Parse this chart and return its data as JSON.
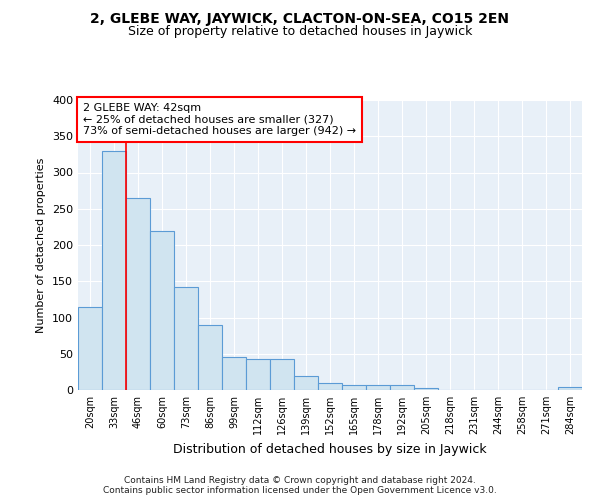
{
  "title1": "2, GLEBE WAY, JAYWICK, CLACTON-ON-SEA, CO15 2EN",
  "title2": "Size of property relative to detached houses in Jaywick",
  "xlabel": "Distribution of detached houses by size in Jaywick",
  "ylabel": "Number of detached properties",
  "bar_color": "#d0e4f0",
  "bar_edge_color": "#5b9bd5",
  "bin_labels": [
    "20sqm",
    "33sqm",
    "46sqm",
    "60sqm",
    "73sqm",
    "86sqm",
    "99sqm",
    "112sqm",
    "126sqm",
    "139sqm",
    "152sqm",
    "165sqm",
    "178sqm",
    "192sqm",
    "205sqm",
    "218sqm",
    "231sqm",
    "244sqm",
    "258sqm",
    "271sqm",
    "284sqm"
  ],
  "values": [
    115,
    330,
    265,
    220,
    142,
    90,
    45,
    43,
    43,
    20,
    10,
    7,
    7,
    7,
    3,
    0,
    0,
    0,
    0,
    0,
    4
  ],
  "red_line_x": 1.5,
  "annotation_text": "2 GLEBE WAY: 42sqm\n← 25% of detached houses are smaller (327)\n73% of semi-detached houses are larger (942) →",
  "ylim": [
    0,
    400
  ],
  "yticks": [
    0,
    50,
    100,
    150,
    200,
    250,
    300,
    350,
    400
  ],
  "footer": "Contains HM Land Registry data © Crown copyright and database right 2024.\nContains public sector information licensed under the Open Government Licence v3.0.",
  "background_color": "#ffffff",
  "plot_bg_color": "#e8f0f8",
  "grid_color": "#ffffff",
  "title1_fontsize": 10,
  "title2_fontsize": 9
}
